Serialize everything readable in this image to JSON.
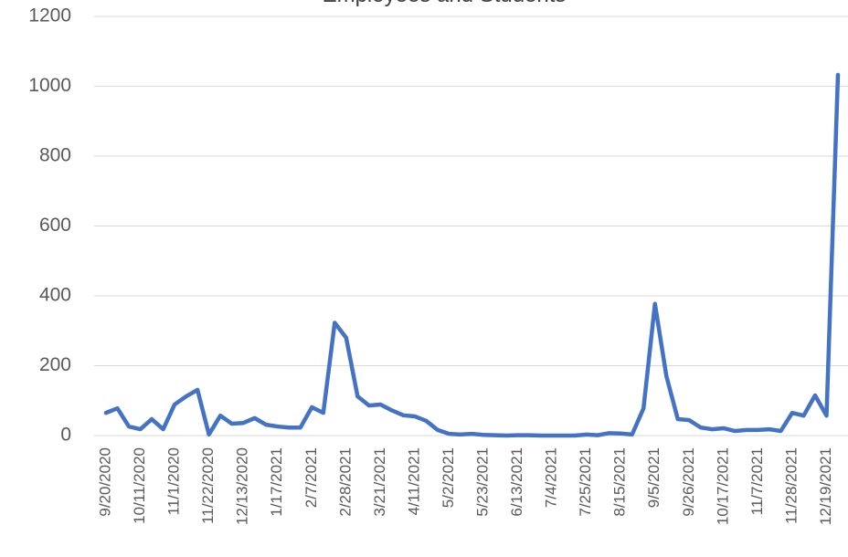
{
  "chart_data": {
    "type": "line",
    "title": "Employees and Students",
    "categories": [
      "9/20/2020",
      null,
      null,
      "10/11/2020",
      null,
      null,
      "11/1/2020",
      null,
      null,
      "11/22/2020",
      null,
      null,
      "12/13/2020",
      null,
      null,
      "1/17/2021",
      null,
      null,
      "2/7/2021",
      null,
      null,
      "2/28/2021",
      null,
      null,
      "3/21/2021",
      null,
      null,
      "4/11/2021",
      null,
      null,
      "5/2/2021",
      null,
      null,
      "5/23/2021",
      null,
      null,
      "6/13/2021",
      null,
      null,
      "7/4/2021",
      null,
      null,
      "7/25/2021",
      null,
      null,
      "8/15/2021",
      null,
      null,
      "9/5/2021",
      null,
      null,
      "9/26/2021",
      null,
      null,
      "10/17/2021",
      null,
      null,
      "11/7/2021",
      null,
      null,
      "11/28/2021",
      null,
      null,
      "12/19/2021",
      null
    ],
    "series": [
      {
        "name": "Employees and Students",
        "color": "#4472c4",
        "values": [
          65,
          78,
          26,
          18,
          47,
          18,
          89,
          112,
          131,
          3,
          57,
          34,
          36,
          50,
          31,
          26,
          23,
          23,
          81,
          65,
          323,
          280,
          112,
          86,
          89,
          72,
          58,
          55,
          42,
          16,
          5,
          3,
          5,
          2,
          1,
          0,
          1,
          1,
          0,
          0,
          0,
          0,
          3,
          1,
          7,
          6,
          3,
          78,
          377,
          170,
          47,
          44,
          23,
          18,
          21,
          13,
          16,
          16,
          18,
          13,
          65,
          57,
          115,
          57,
          1033
        ]
      }
    ],
    "ylim": [
      0,
      1200
    ],
    "yticks": [
      0,
      200,
      400,
      600,
      800,
      1000,
      1200
    ],
    "grid": true
  }
}
